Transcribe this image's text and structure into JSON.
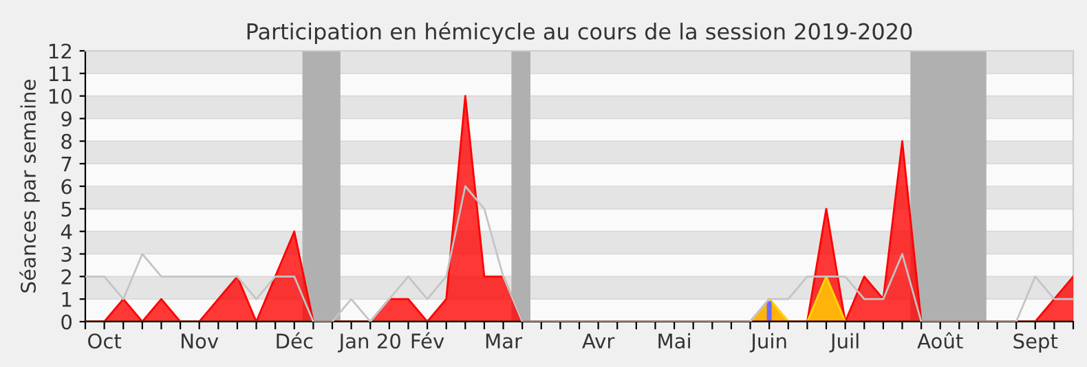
{
  "chart_data": {
    "type": "area",
    "title": "Participation en hémicycle au cours de la session 2019-2020",
    "ylabel": "Séances par semaine",
    "x": [
      "2019-09-30",
      "2019-10-07",
      "2019-10-14",
      "2019-10-21",
      "2019-10-28",
      "2019-11-04",
      "2019-11-11",
      "2019-11-18",
      "2019-11-25",
      "2019-12-02",
      "2019-12-09",
      "2019-12-16",
      "2019-12-23",
      "2019-12-30",
      "2020-01-06",
      "2020-01-13",
      "2020-01-20",
      "2020-01-27",
      "2020-02-03",
      "2020-02-10",
      "2020-02-17",
      "2020-02-24",
      "2020-03-02",
      "2020-03-09",
      "2020-03-16",
      "2020-03-23",
      "2020-03-30",
      "2020-04-06",
      "2020-04-13",
      "2020-04-20",
      "2020-04-27",
      "2020-05-04",
      "2020-05-11",
      "2020-05-18",
      "2020-05-25",
      "2020-06-01",
      "2020-06-08",
      "2020-06-15",
      "2020-06-22",
      "2020-06-29",
      "2020-07-06",
      "2020-07-13",
      "2020-07-20",
      "2020-07-27",
      "2020-08-03",
      "2020-08-10",
      "2020-08-17",
      "2020-08-24",
      "2020-08-31",
      "2020-09-07",
      "2020-09-14",
      "2020-09-21",
      "2020-09-28"
    ],
    "series": [
      {
        "type": "line",
        "color": "#c4c4c4",
        "values": [
          2,
          2,
          1,
          3,
          2,
          2,
          2,
          2,
          2,
          1,
          2,
          2,
          0,
          0,
          1,
          0,
          1,
          2,
          1,
          2,
          6,
          5,
          2,
          0,
          0,
          0,
          0,
          0,
          0,
          0,
          0,
          0,
          0,
          0,
          0,
          0,
          1,
          1,
          2,
          2,
          2,
          1,
          1,
          3,
          0,
          0,
          0,
          0,
          0,
          0,
          2,
          1,
          1
        ]
      },
      {
        "color": "#ff0000",
        "values": [
          0,
          0,
          1,
          0,
          1,
          0,
          0,
          1,
          2,
          0,
          2,
          4,
          0,
          0,
          0,
          0,
          1,
          1,
          0,
          1,
          10,
          2,
          2,
          0,
          0,
          0,
          0,
          0,
          0,
          0,
          0,
          0,
          0,
          0,
          0,
          0,
          1,
          0,
          0,
          5,
          0,
          2,
          1,
          8,
          0,
          0,
          0,
          0,
          0,
          0,
          0,
          1,
          2
        ]
      },
      {
        "color": "#ffd700",
        "values": [
          0,
          0,
          0,
          0,
          0,
          0,
          0,
          0,
          0,
          0,
          0,
          0,
          0,
          0,
          0,
          0,
          0,
          0,
          0,
          0,
          0,
          0,
          0,
          0,
          0,
          0,
          0,
          0,
          0,
          0,
          0,
          0,
          0,
          0,
          0,
          0,
          1,
          0,
          0,
          2,
          0,
          0,
          0,
          0,
          0,
          0,
          0,
          0,
          0,
          0,
          0,
          0,
          0
        ]
      },
      {
        "type": "bar",
        "color": "#6b6bff",
        "values": [
          null,
          null,
          null,
          null,
          null,
          null,
          null,
          null,
          null,
          null,
          null,
          null,
          null,
          null,
          null,
          null,
          null,
          null,
          null,
          null,
          null,
          null,
          null,
          null,
          null,
          null,
          null,
          null,
          null,
          null,
          null,
          null,
          null,
          null,
          null,
          null,
          0.9,
          null,
          null,
          null,
          null,
          null,
          null,
          null,
          null,
          null,
          null,
          null,
          null,
          null,
          null,
          null,
          null
        ]
      }
    ],
    "xlim": [
      "2019-09-30",
      "2020-09-28"
    ],
    "xticks": [
      {
        "value": "2019-09-30",
        "label": null
      },
      {
        "value": "2019-10-07",
        "label": "Oct"
      },
      {
        "value": "2019-10-14",
        "label": null
      },
      {
        "value": "2019-10-21",
        "label": null
      },
      {
        "value": "2019-10-28",
        "label": null
      },
      {
        "value": "2019-11-04",
        "label": null
      },
      {
        "value": "2019-11-11",
        "label": "Nov"
      },
      {
        "value": "2019-11-18",
        "label": null
      },
      {
        "value": "2019-11-25",
        "label": null
      },
      {
        "value": "2019-12-02",
        "label": null
      },
      {
        "value": "2019-12-09",
        "label": null
      },
      {
        "value": "2019-12-16",
        "label": "Déc"
      },
      {
        "value": "2019-12-23",
        "label": null
      },
      {
        "value": "2019-12-30",
        "label": null
      },
      {
        "value": "2020-01-06",
        "label": null
      },
      {
        "value": "2020-01-13",
        "label": "Jan 20"
      },
      {
        "value": "2020-01-20",
        "label": null
      },
      {
        "value": "2020-01-27",
        "label": null
      },
      {
        "value": "2020-02-03",
        "label": "Fév"
      },
      {
        "value": "2020-02-10",
        "label": null
      },
      {
        "value": "2020-02-17",
        "label": null
      },
      {
        "value": "2020-02-24",
        "label": null
      },
      {
        "value": "2020-03-02",
        "label": "Mar"
      },
      {
        "value": "2020-03-09",
        "label": null
      },
      {
        "value": "2020-03-16",
        "label": null
      },
      {
        "value": "2020-03-23",
        "label": null
      },
      {
        "value": "2020-03-30",
        "label": null
      },
      {
        "value": "2020-04-06",
        "label": "Avr"
      },
      {
        "value": "2020-04-13",
        "label": null
      },
      {
        "value": "2020-04-20",
        "label": null
      },
      {
        "value": "2020-04-27",
        "label": null
      },
      {
        "value": "2020-05-04",
        "label": "Mai"
      },
      {
        "value": "2020-05-11",
        "label": null
      },
      {
        "value": "2020-05-18",
        "label": null
      },
      {
        "value": "2020-05-25",
        "label": null
      },
      {
        "value": "2020-06-01",
        "label": null
      },
      {
        "value": "2020-06-08",
        "label": "Juin"
      },
      {
        "value": "2020-06-15",
        "label": null
      },
      {
        "value": "2020-06-22",
        "label": null
      },
      {
        "value": "2020-06-29",
        "label": null
      },
      {
        "value": "2020-07-06",
        "label": "Juil"
      },
      {
        "value": "2020-07-13",
        "label": null
      },
      {
        "value": "2020-07-20",
        "label": null
      },
      {
        "value": "2020-07-27",
        "label": null
      },
      {
        "value": "2020-08-03",
        "label": null
      },
      {
        "value": "2020-08-10",
        "label": "Août"
      },
      {
        "value": "2020-08-17",
        "label": null
      },
      {
        "value": "2020-08-24",
        "label": null
      },
      {
        "value": "2020-08-31",
        "label": null
      },
      {
        "value": "2020-09-07",
        "label": null
      },
      {
        "value": "2020-09-14",
        "label": "Sept"
      },
      {
        "value": "2020-09-21",
        "label": null
      },
      {
        "value": "2020-09-28",
        "label": null
      }
    ],
    "ylim": [
      0,
      12
    ],
    "yticks": [
      0,
      1,
      2,
      3,
      4,
      5,
      6,
      7,
      8,
      9,
      10,
      11,
      12
    ],
    "grid": "y",
    "bands": [
      {
        "axis": "x",
        "from": "2019-12-19",
        "to": "2020-01-02",
        "color": "#b0b0b0"
      },
      {
        "axis": "x",
        "from": "2020-03-05",
        "to": "2020-03-12",
        "color": "#b0b0b0"
      },
      {
        "axis": "x",
        "from": "2020-07-30",
        "to": "2020-08-27",
        "color": "#b0b0b0"
      }
    ]
  }
}
